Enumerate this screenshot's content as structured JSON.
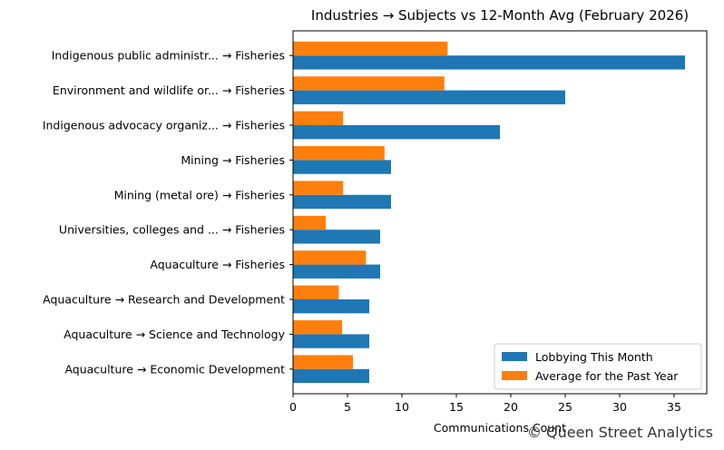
{
  "chart_data": {
    "type": "bar",
    "orientation": "horizontal",
    "title": "Industries → Subjects vs 12-Month Avg (February 2026)",
    "xlabel": "Communications Count",
    "ylabel": "",
    "xlim": [
      0,
      38
    ],
    "xticks": [
      0,
      5,
      10,
      15,
      20,
      25,
      30,
      35
    ],
    "grid": false,
    "legend_position": "lower-right",
    "categories": [
      "Indigenous public administr... → Fisheries",
      "Environment and wildlife or... → Fisheries",
      "Indigenous advocacy organiz... → Fisheries",
      "Mining → Fisheries",
      "Mining (metal ore) → Fisheries",
      "Universities, colleges and ... → Fisheries",
      "Aquaculture → Fisheries",
      "Aquaculture → Research and Development",
      "Aquaculture → Science and Technology",
      "Aquaculture → Economic Development"
    ],
    "series": [
      {
        "name": "Lobbying This Month",
        "color": "#1f77b4",
        "values": [
          36,
          25,
          19,
          9,
          9,
          8,
          8,
          7,
          7,
          7
        ]
      },
      {
        "name": "Average for the Past Year",
        "color": "#ff7f0e",
        "values": [
          14.2,
          13.9,
          4.6,
          8.4,
          4.6,
          3.0,
          6.7,
          4.2,
          4.5,
          5.5
        ]
      }
    ]
  },
  "watermark": "© Queen Street Analytics"
}
